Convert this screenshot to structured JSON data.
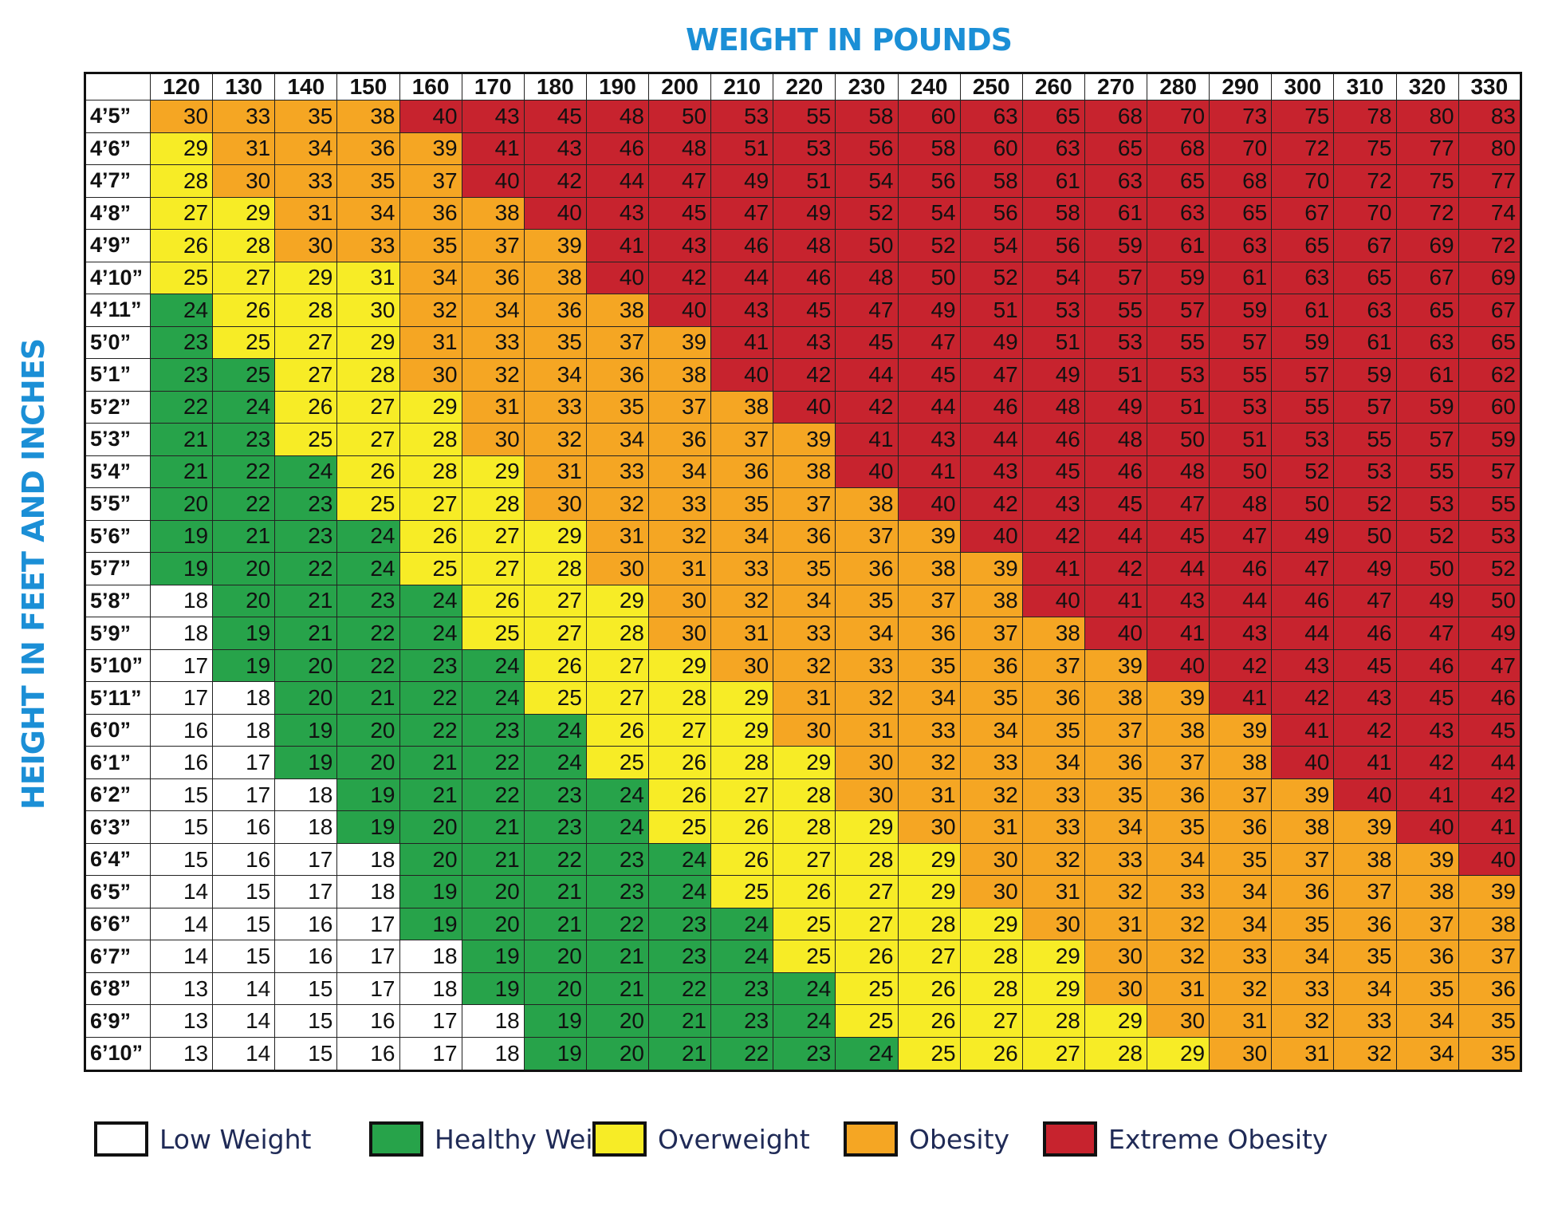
{
  "chart_data": {
    "type": "table",
    "title": "WEIGHT IN POUNDS",
    "ylabel": "HEIGHT IN FEET AND INCHES",
    "weights": [
      120,
      130,
      140,
      150,
      160,
      170,
      180,
      190,
      200,
      210,
      220,
      230,
      240,
      250,
      260,
      270,
      280,
      290,
      300,
      310,
      320,
      330
    ],
    "heights": [
      "4’5”",
      "4’6”",
      "4’7”",
      "4’8”",
      "4’9”",
      "4’10”",
      "4’11”",
      "5’0”",
      "5’1”",
      "5’2”",
      "5’3”",
      "5’4”",
      "5’5”",
      "5’6”",
      "5’7”",
      "5’8”",
      "5’9”",
      "5’10”",
      "5’11”",
      "6’0”",
      "6’1”",
      "6’2”",
      "6’3”",
      "6’4”",
      "6’5”",
      "6’6”",
      "6’7”",
      "6’8”",
      "6’9”",
      "6’10”"
    ],
    "values": [
      [
        30,
        33,
        35,
        38,
        40,
        43,
        45,
        48,
        50,
        53,
        55,
        58,
        60,
        63,
        65,
        68,
        70,
        73,
        75,
        78,
        80,
        83
      ],
      [
        29,
        31,
        34,
        36,
        39,
        41,
        43,
        46,
        48,
        51,
        53,
        56,
        58,
        60,
        63,
        65,
        68,
        70,
        72,
        75,
        77,
        80
      ],
      [
        28,
        30,
        33,
        35,
        37,
        40,
        42,
        44,
        47,
        49,
        51,
        54,
        56,
        58,
        61,
        63,
        65,
        68,
        70,
        72,
        75,
        77
      ],
      [
        27,
        29,
        31,
        34,
        36,
        38,
        40,
        43,
        45,
        47,
        49,
        52,
        54,
        56,
        58,
        61,
        63,
        65,
        67,
        70,
        72,
        74
      ],
      [
        26,
        28,
        30,
        33,
        35,
        37,
        39,
        41,
        43,
        46,
        48,
        50,
        52,
        54,
        56,
        59,
        61,
        63,
        65,
        67,
        69,
        72
      ],
      [
        25,
        27,
        29,
        31,
        34,
        36,
        38,
        40,
        42,
        44,
        46,
        48,
        50,
        52,
        54,
        57,
        59,
        61,
        63,
        65,
        67,
        69
      ],
      [
        24,
        26,
        28,
        30,
        32,
        34,
        36,
        38,
        40,
        43,
        45,
        47,
        49,
        51,
        53,
        55,
        57,
        59,
        61,
        63,
        65,
        67
      ],
      [
        23,
        25,
        27,
        29,
        31,
        33,
        35,
        37,
        39,
        41,
        43,
        45,
        47,
        49,
        51,
        53,
        55,
        57,
        59,
        61,
        63,
        65
      ],
      [
        23,
        25,
        27,
        28,
        30,
        32,
        34,
        36,
        38,
        40,
        42,
        44,
        45,
        47,
        49,
        51,
        53,
        55,
        57,
        59,
        61,
        62
      ],
      [
        22,
        24,
        26,
        27,
        29,
        31,
        33,
        35,
        37,
        38,
        40,
        42,
        44,
        46,
        48,
        49,
        51,
        53,
        55,
        57,
        59,
        60
      ],
      [
        21,
        23,
        25,
        27,
        28,
        30,
        32,
        34,
        36,
        37,
        39,
        41,
        43,
        44,
        46,
        48,
        50,
        51,
        53,
        55,
        57,
        59
      ],
      [
        21,
        22,
        24,
        26,
        28,
        29,
        31,
        33,
        34,
        36,
        38,
        40,
        41,
        43,
        45,
        46,
        48,
        50,
        52,
        53,
        55,
        57
      ],
      [
        20,
        22,
        23,
        25,
        27,
        28,
        30,
        32,
        33,
        35,
        37,
        38,
        40,
        42,
        43,
        45,
        47,
        48,
        50,
        52,
        53,
        55
      ],
      [
        19,
        21,
        23,
        24,
        26,
        27,
        29,
        31,
        32,
        34,
        36,
        37,
        39,
        40,
        42,
        44,
        45,
        47,
        49,
        50,
        52,
        53
      ],
      [
        19,
        20,
        22,
        24,
        25,
        27,
        28,
        30,
        31,
        33,
        35,
        36,
        38,
        39,
        41,
        42,
        44,
        46,
        47,
        49,
        50,
        52
      ],
      [
        18,
        20,
        21,
        23,
        24,
        26,
        27,
        29,
        30,
        32,
        34,
        35,
        37,
        38,
        40,
        41,
        43,
        44,
        46,
        47,
        49,
        50
      ],
      [
        18,
        19,
        21,
        22,
        24,
        25,
        27,
        28,
        30,
        31,
        33,
        34,
        36,
        37,
        38,
        40,
        41,
        43,
        44,
        46,
        47,
        49
      ],
      [
        17,
        19,
        20,
        22,
        23,
        24,
        26,
        27,
        29,
        30,
        32,
        33,
        35,
        36,
        37,
        39,
        40,
        42,
        43,
        45,
        46,
        47
      ],
      [
        17,
        18,
        20,
        21,
        22,
        24,
        25,
        27,
        28,
        29,
        31,
        32,
        34,
        35,
        36,
        38,
        39,
        41,
        42,
        43,
        45,
        46
      ],
      [
        16,
        18,
        19,
        20,
        22,
        23,
        24,
        26,
        27,
        29,
        30,
        31,
        33,
        34,
        35,
        37,
        38,
        39,
        41,
        42,
        43,
        45
      ],
      [
        16,
        17,
        19,
        20,
        21,
        22,
        24,
        25,
        26,
        28,
        29,
        30,
        32,
        33,
        34,
        36,
        37,
        38,
        40,
        41,
        42,
        44
      ],
      [
        15,
        17,
        18,
        19,
        21,
        22,
        23,
        24,
        26,
        27,
        28,
        30,
        31,
        32,
        33,
        35,
        36,
        37,
        39,
        40,
        41,
        42
      ],
      [
        15,
        16,
        18,
        19,
        20,
        21,
        23,
        24,
        25,
        26,
        28,
        29,
        30,
        31,
        33,
        34,
        35,
        36,
        38,
        39,
        40,
        41
      ],
      [
        15,
        16,
        17,
        18,
        20,
        21,
        22,
        23,
        24,
        26,
        27,
        28,
        29,
        30,
        32,
        33,
        34,
        35,
        37,
        38,
        39,
        40
      ],
      [
        14,
        15,
        17,
        18,
        19,
        20,
        21,
        23,
        24,
        25,
        26,
        27,
        29,
        30,
        31,
        32,
        33,
        34,
        36,
        37,
        38,
        39
      ],
      [
        14,
        15,
        16,
        17,
        19,
        20,
        21,
        22,
        23,
        24,
        25,
        27,
        28,
        29,
        30,
        31,
        32,
        34,
        35,
        36,
        37,
        38
      ],
      [
        14,
        15,
        16,
        17,
        18,
        19,
        20,
        21,
        23,
        24,
        25,
        26,
        27,
        28,
        29,
        30,
        32,
        33,
        34,
        35,
        36,
        37
      ],
      [
        13,
        14,
        15,
        17,
        18,
        19,
        20,
        21,
        22,
        23,
        24,
        25,
        26,
        28,
        29,
        30,
        31,
        32,
        33,
        34,
        35,
        36
      ],
      [
        13,
        14,
        15,
        16,
        17,
        18,
        19,
        20,
        21,
        23,
        24,
        25,
        26,
        27,
        28,
        29,
        30,
        31,
        32,
        33,
        34,
        35
      ],
      [
        13,
        14,
        15,
        16,
        17,
        18,
        19,
        20,
        21,
        22,
        23,
        24,
        25,
        26,
        27,
        28,
        29,
        30,
        31,
        32,
        34,
        35
      ]
    ],
    "categories": [
      [
        3,
        3,
        3,
        3,
        4,
        4,
        4,
        4,
        4,
        4,
        4,
        4,
        4,
        4,
        4,
        4,
        4,
        4,
        4,
        4,
        4,
        4
      ],
      [
        2,
        3,
        3,
        3,
        3,
        4,
        4,
        4,
        4,
        4,
        4,
        4,
        4,
        4,
        4,
        4,
        4,
        4,
        4,
        4,
        4,
        4
      ],
      [
        2,
        3,
        3,
        3,
        3,
        4,
        4,
        4,
        4,
        4,
        4,
        4,
        4,
        4,
        4,
        4,
        4,
        4,
        4,
        4,
        4,
        4
      ],
      [
        2,
        2,
        3,
        3,
        3,
        3,
        4,
        4,
        4,
        4,
        4,
        4,
        4,
        4,
        4,
        4,
        4,
        4,
        4,
        4,
        4,
        4
      ],
      [
        2,
        2,
        3,
        3,
        3,
        3,
        3,
        4,
        4,
        4,
        4,
        4,
        4,
        4,
        4,
        4,
        4,
        4,
        4,
        4,
        4,
        4
      ],
      [
        2,
        2,
        2,
        2,
        3,
        3,
        3,
        4,
        4,
        4,
        4,
        4,
        4,
        4,
        4,
        4,
        4,
        4,
        4,
        4,
        4,
        4
      ],
      [
        1,
        2,
        2,
        2,
        3,
        3,
        3,
        3,
        4,
        4,
        4,
        4,
        4,
        4,
        4,
        4,
        4,
        4,
        4,
        4,
        4,
        4
      ],
      [
        1,
        2,
        2,
        2,
        3,
        3,
        3,
        3,
        3,
        4,
        4,
        4,
        4,
        4,
        4,
        4,
        4,
        4,
        4,
        4,
        4,
        4
      ],
      [
        1,
        1,
        2,
        2,
        3,
        3,
        3,
        3,
        3,
        4,
        4,
        4,
        4,
        4,
        4,
        4,
        4,
        4,
        4,
        4,
        4,
        4
      ],
      [
        1,
        1,
        2,
        2,
        2,
        3,
        3,
        3,
        3,
        3,
        4,
        4,
        4,
        4,
        4,
        4,
        4,
        4,
        4,
        4,
        4,
        4
      ],
      [
        1,
        1,
        2,
        2,
        2,
        3,
        3,
        3,
        3,
        3,
        3,
        4,
        4,
        4,
        4,
        4,
        4,
        4,
        4,
        4,
        4,
        4
      ],
      [
        1,
        1,
        1,
        2,
        2,
        2,
        3,
        3,
        3,
        3,
        3,
        4,
        4,
        4,
        4,
        4,
        4,
        4,
        4,
        4,
        4,
        4
      ],
      [
        1,
        1,
        1,
        2,
        2,
        2,
        3,
        3,
        3,
        3,
        3,
        3,
        4,
        4,
        4,
        4,
        4,
        4,
        4,
        4,
        4,
        4
      ],
      [
        1,
        1,
        1,
        1,
        2,
        2,
        2,
        3,
        3,
        3,
        3,
        3,
        3,
        4,
        4,
        4,
        4,
        4,
        4,
        4,
        4,
        4
      ],
      [
        1,
        1,
        1,
        1,
        2,
        2,
        2,
        3,
        3,
        3,
        3,
        3,
        3,
        3,
        4,
        4,
        4,
        4,
        4,
        4,
        4,
        4
      ],
      [
        0,
        1,
        1,
        1,
        1,
        2,
        2,
        2,
        3,
        3,
        3,
        3,
        3,
        3,
        4,
        4,
        4,
        4,
        4,
        4,
        4,
        4
      ],
      [
        0,
        1,
        1,
        1,
        1,
        2,
        2,
        2,
        3,
        3,
        3,
        3,
        3,
        3,
        3,
        4,
        4,
        4,
        4,
        4,
        4,
        4
      ],
      [
        0,
        1,
        1,
        1,
        1,
        1,
        2,
        2,
        2,
        3,
        3,
        3,
        3,
        3,
        3,
        3,
        4,
        4,
        4,
        4,
        4,
        4
      ],
      [
        0,
        0,
        1,
        1,
        1,
        1,
        2,
        2,
        2,
        2,
        3,
        3,
        3,
        3,
        3,
        3,
        3,
        4,
        4,
        4,
        4,
        4
      ],
      [
        0,
        0,
        1,
        1,
        1,
        1,
        1,
        2,
        2,
        2,
        3,
        3,
        3,
        3,
        3,
        3,
        3,
        3,
        4,
        4,
        4,
        4
      ],
      [
        0,
        0,
        1,
        1,
        1,
        1,
        1,
        2,
        2,
        2,
        2,
        3,
        3,
        3,
        3,
        3,
        3,
        3,
        4,
        4,
        4,
        4
      ],
      [
        0,
        0,
        0,
        1,
        1,
        1,
        1,
        1,
        2,
        2,
        2,
        3,
        3,
        3,
        3,
        3,
        3,
        3,
        3,
        4,
        4,
        4
      ],
      [
        0,
        0,
        0,
        1,
        1,
        1,
        1,
        1,
        2,
        2,
        2,
        2,
        3,
        3,
        3,
        3,
        3,
        3,
        3,
        3,
        4,
        4
      ],
      [
        0,
        0,
        0,
        0,
        1,
        1,
        1,
        1,
        1,
        2,
        2,
        2,
        2,
        3,
        3,
        3,
        3,
        3,
        3,
        3,
        3,
        4
      ],
      [
        0,
        0,
        0,
        0,
        1,
        1,
        1,
        1,
        1,
        2,
        2,
        2,
        2,
        3,
        3,
        3,
        3,
        3,
        3,
        3,
        3,
        3
      ],
      [
        0,
        0,
        0,
        0,
        1,
        1,
        1,
        1,
        1,
        1,
        2,
        2,
        2,
        2,
        3,
        3,
        3,
        3,
        3,
        3,
        3,
        3
      ],
      [
        0,
        0,
        0,
        0,
        0,
        1,
        1,
        1,
        1,
        1,
        2,
        2,
        2,
        2,
        2,
        3,
        3,
        3,
        3,
        3,
        3,
        3
      ],
      [
        0,
        0,
        0,
        0,
        0,
        1,
        1,
        1,
        1,
        1,
        1,
        2,
        2,
        2,
        2,
        3,
        3,
        3,
        3,
        3,
        3,
        3
      ],
      [
        0,
        0,
        0,
        0,
        0,
        0,
        1,
        1,
        1,
        1,
        1,
        2,
        2,
        2,
        2,
        2,
        3,
        3,
        3,
        3,
        3,
        3
      ],
      [
        0,
        0,
        0,
        0,
        0,
        0,
        1,
        1,
        1,
        1,
        1,
        1,
        2,
        2,
        2,
        2,
        2,
        3,
        3,
        3,
        3,
        3
      ]
    ],
    "legend": [
      {
        "label": "Low Weight",
        "color": "#ffffff"
      },
      {
        "label": "Healthy Weight",
        "color": "#27a34a"
      },
      {
        "label": "Overweight",
        "color": "#f7ec26"
      },
      {
        "label": "Obesity",
        "color": "#f5a623"
      },
      {
        "label": "Extreme Obesity",
        "color": "#c7232e"
      }
    ]
  }
}
